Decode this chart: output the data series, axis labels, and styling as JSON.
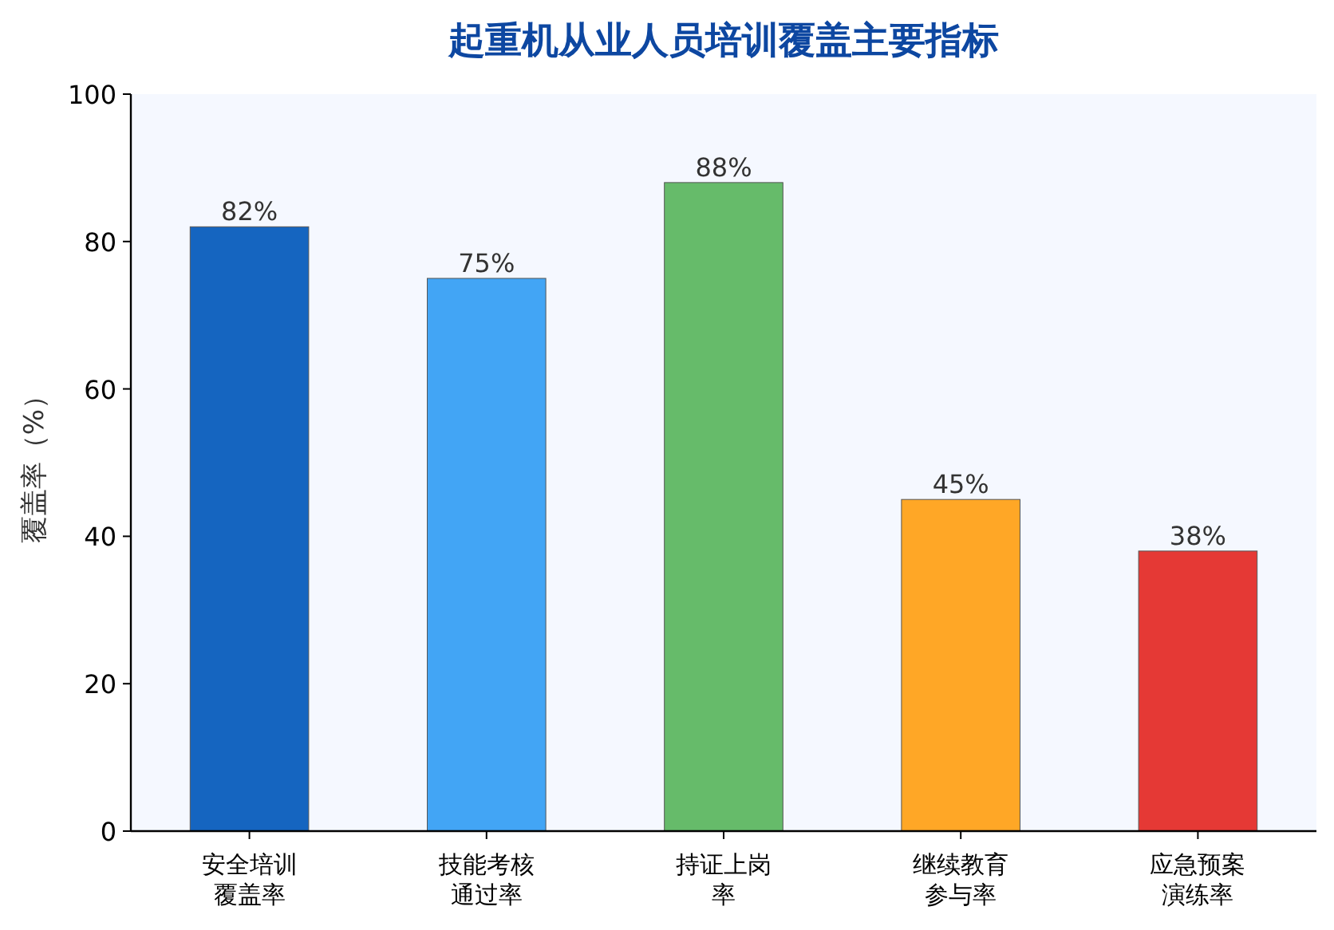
{
  "chart_data": {
    "type": "bar",
    "title": "起重机从业人员培训覆盖主要指标",
    "ylabel": "覆盖率（%）",
    "categories": [
      "安全培训覆盖率",
      "技能考核通过率",
      "持证上岗率",
      "继续教育参与率",
      "应急预案演练率"
    ],
    "values": [
      82,
      75,
      88,
      45,
      38
    ],
    "colors": [
      "#1565c0",
      "#42a5f5",
      "#66bb6a",
      "#ffa726",
      "#e53935"
    ],
    "value_labels": [
      "82%",
      "75%",
      "88%",
      "45%",
      "38%"
    ],
    "ylim": [
      0,
      100
    ],
    "yticks": [
      0,
      20,
      40,
      60,
      80,
      100
    ],
    "grid": false
  }
}
